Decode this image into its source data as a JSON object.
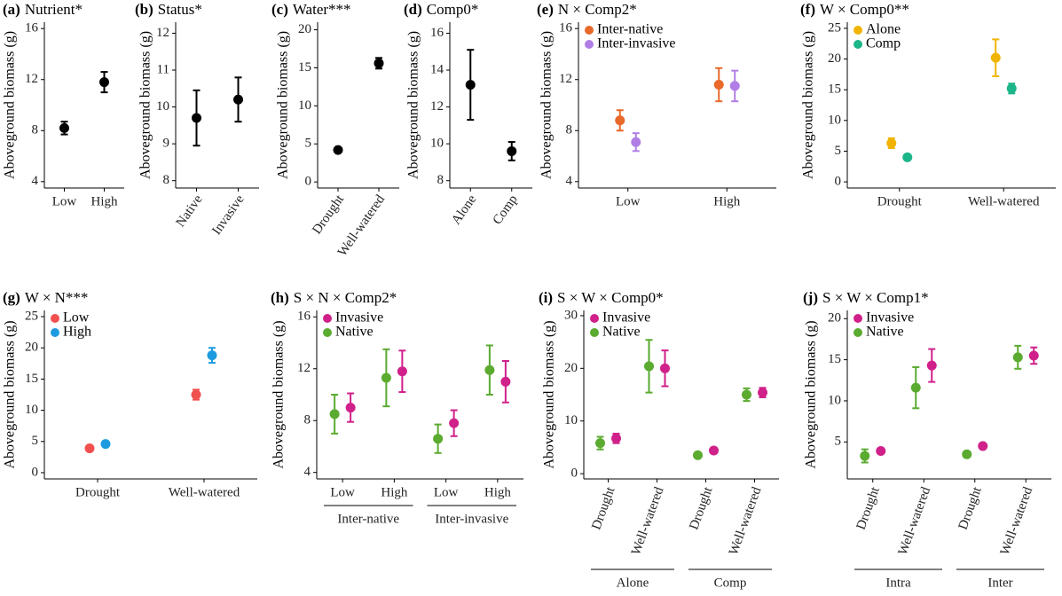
{
  "chart_data": [
    {
      "type": "errorbar",
      "label": "(a)",
      "title": "Nutrient*",
      "ylabel": "Aboveground biomass (g)",
      "categories": [
        "Low",
        "High"
      ],
      "series": [
        {
          "color": "#000000",
          "values": [
            8.2,
            11.8
          ],
          "errors": [
            0.5,
            0.8
          ]
        }
      ],
      "ylim": [
        3.5,
        16.5
      ],
      "yticks": [
        4,
        8,
        12,
        16
      ]
    },
    {
      "type": "errorbar",
      "label": "(b)",
      "title": "Status*",
      "ylabel": "Aboveground biomass (g)",
      "categories": [
        "Native",
        "Invasive"
      ],
      "series": [
        {
          "color": "#000000",
          "values": [
            9.7,
            10.2
          ],
          "errors": [
            0.75,
            0.6
          ]
        }
      ],
      "ylim": [
        7.8,
        12.3
      ],
      "yticks": [
        8,
        9,
        10,
        11,
        12
      ]
    },
    {
      "type": "errorbar",
      "label": "(c)",
      "title": "Water***",
      "ylabel": "Aboveground biomass (g)",
      "categories": [
        "Drought",
        "Well-watered"
      ],
      "series": [
        {
          "color": "#000000",
          "values": [
            4.2,
            15.6
          ],
          "errors": [
            0.2,
            0.7
          ]
        }
      ],
      "ylim": [
        -0.8,
        21
      ],
      "yticks": [
        0,
        5,
        10,
        15,
        20
      ]
    },
    {
      "type": "errorbar",
      "label": "(d)",
      "title": "Comp0*",
      "ylabel": "Aboveground biomass (g)",
      "categories": [
        "Alone",
        "Comp"
      ],
      "series": [
        {
          "color": "#000000",
          "values": [
            13.2,
            9.6
          ],
          "errors": [
            1.9,
            0.5
          ]
        }
      ],
      "ylim": [
        7.6,
        16.6
      ],
      "yticks": [
        8,
        10,
        12,
        14,
        16
      ]
    },
    {
      "type": "errorbar",
      "label": "(e)",
      "title": "N × Comp2*",
      "ylabel": "Aboveground biomass (g)",
      "categories": [
        "Low",
        "High"
      ],
      "series": [
        {
          "name": "Inter-native",
          "color": "#e8692a",
          "values": [
            8.8,
            11.6
          ],
          "errors": [
            0.8,
            1.3
          ]
        },
        {
          "name": "Inter-invasive",
          "color": "#b07ee6",
          "values": [
            7.1,
            11.5
          ],
          "errors": [
            0.7,
            1.2
          ]
        }
      ],
      "ylim": [
        3.5,
        16.5
      ],
      "yticks": [
        4,
        8,
        12,
        16
      ]
    },
    {
      "type": "errorbar",
      "label": "(f)",
      "title": "W × Comp0**",
      "ylabel": "Aboveground biomass (g)",
      "categories": [
        "Drought",
        "Well-watered"
      ],
      "series": [
        {
          "name": "Alone",
          "color": "#f0b400",
          "values": [
            6.3,
            20.2
          ],
          "errors": [
            0.8,
            3.0
          ]
        },
        {
          "name": "Comp",
          "color": "#1db58a",
          "values": [
            4.0,
            15.2
          ],
          "errors": [
            0.3,
            0.8
          ]
        }
      ],
      "ylim": [
        -1,
        26
      ],
      "yticks": [
        0,
        5,
        10,
        15,
        20,
        25
      ]
    },
    {
      "type": "errorbar",
      "label": "(g)",
      "title": "W × N***",
      "ylabel": "Aboveground biomass (g)",
      "categories": [
        "Drought",
        "Well-watered"
      ],
      "series": [
        {
          "name": "Low",
          "color": "#f0504e",
          "values": [
            3.9,
            12.5
          ],
          "errors": [
            0.2,
            0.8
          ]
        },
        {
          "name": "High",
          "color": "#1e9be0",
          "values": [
            4.6,
            18.8
          ],
          "errors": [
            0.2,
            1.2
          ]
        }
      ],
      "ylim": [
        -1,
        26
      ],
      "yticks": [
        0,
        5,
        10,
        15,
        20,
        25
      ]
    },
    {
      "type": "errorbar",
      "label": "(h)",
      "title": "S × N × Comp2*",
      "ylabel": "Aboveground biomass (g)",
      "categories": [
        "Low",
        "High",
        "Low",
        "High"
      ],
      "groups": [
        "Inter-native",
        "Inter-invasive"
      ],
      "legend_reverse": true,
      "series": [
        {
          "name": "Invasive",
          "color": "#d0208a",
          "values": [
            9.0,
            11.8,
            7.8,
            11.0
          ],
          "errors": [
            1.1,
            1.6,
            1.0,
            1.6
          ]
        },
        {
          "name": "Native",
          "color": "#5aab30",
          "values": [
            8.5,
            11.3,
            6.6,
            11.9
          ],
          "errors": [
            1.5,
            2.2,
            1.1,
            1.9
          ]
        }
      ],
      "ylim": [
        3.5,
        16.5
      ],
      "yticks": [
        4,
        8,
        12,
        16
      ]
    },
    {
      "type": "errorbar",
      "label": "(i)",
      "title": "S × W × Comp0*",
      "ylabel": "Aboveground biomass (g)",
      "categories": [
        "Drought",
        "Well-watered",
        "Drought",
        "Well-watered"
      ],
      "groups": [
        "Alone",
        "Comp"
      ],
      "legend_reverse": true,
      "series": [
        {
          "name": "Invasive",
          "color": "#d0208a",
          "values": [
            6.7,
            20.0,
            4.4,
            15.4
          ],
          "errors": [
            0.9,
            3.4,
            0.2,
            0.9
          ]
        },
        {
          "name": "Native",
          "color": "#5aab30",
          "values": [
            5.8,
            20.4,
            3.5,
            15.0
          ],
          "errors": [
            1.2,
            5.0,
            0.2,
            1.2
          ]
        }
      ],
      "ylim": [
        -1,
        31
      ],
      "yticks": [
        0,
        10,
        20,
        30
      ]
    },
    {
      "type": "errorbar",
      "label": "(j)",
      "title": "S × W × Comp1*",
      "ylabel": "Aboveground biomass (g)",
      "categories": [
        "Drought",
        "Well-watered",
        "Drought",
        "Well-watered"
      ],
      "groups": [
        "Intra",
        "Inter"
      ],
      "legend_reverse": true,
      "series": [
        {
          "name": "Invasive",
          "color": "#d0208a",
          "values": [
            3.9,
            14.3,
            4.5,
            15.5
          ],
          "errors": [
            0.3,
            2.0,
            0.2,
            1.0
          ]
        },
        {
          "name": "Native",
          "color": "#5aab30",
          "values": [
            3.3,
            11.6,
            3.5,
            15.3
          ],
          "errors": [
            0.8,
            2.5,
            0.2,
            1.4
          ]
        }
      ],
      "ylim": [
        0.5,
        21
      ],
      "yticks": [
        5,
        10,
        15,
        20
      ]
    }
  ]
}
